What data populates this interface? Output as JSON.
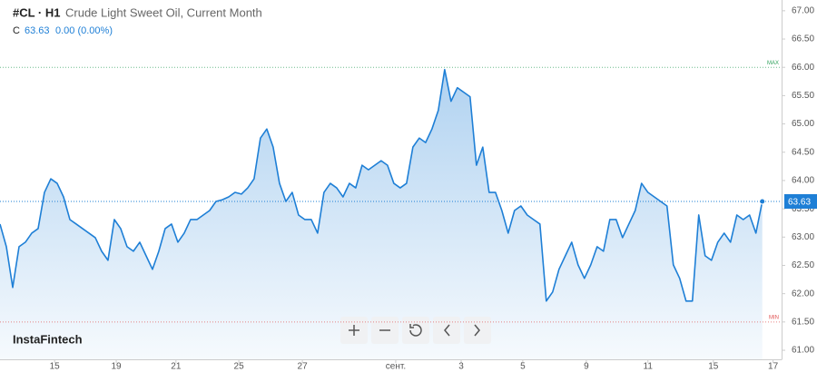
{
  "chart_data": {
    "type": "area",
    "symbol": "#CL · H1",
    "title": "Crude Light Sweet Oil, Current Month",
    "price_label": "C",
    "last_value": 63.63,
    "change_label": "0.00 (0.00%)",
    "brand": "InstaFintech",
    "max_line": {
      "label": "MAX",
      "value": 66
    },
    "min_line": {
      "label": "MIN",
      "value": 61.5
    },
    "x": [
      0,
      1,
      2,
      3,
      4,
      5,
      6,
      7,
      8,
      9,
      10,
      11,
      12,
      13,
      14,
      15,
      16,
      17,
      18,
      19,
      20,
      21,
      22,
      23,
      24,
      25,
      26,
      27,
      28,
      29,
      30,
      31,
      32,
      33,
      34,
      35,
      36,
      37,
      38,
      39,
      40,
      41,
      42,
      43,
      44,
      45,
      46,
      47,
      48,
      49,
      50,
      51,
      52,
      53,
      54,
      55,
      56,
      57,
      58,
      59,
      60,
      61,
      62,
      63,
      64,
      65,
      66,
      67,
      68,
      69,
      70,
      71,
      72,
      73,
      74,
      75,
      76,
      77,
      78,
      79,
      80,
      81,
      82,
      83,
      84,
      85,
      86,
      87,
      88,
      89,
      90,
      91,
      92,
      93,
      94,
      95,
      96,
      97,
      98,
      99,
      100,
      101,
      102,
      103,
      104,
      105,
      106,
      107,
      108,
      109,
      110,
      111,
      112,
      113,
      114,
      115,
      116,
      117,
      118,
      119,
      120
    ],
    "series": [
      {
        "color": "#1e7fd6",
        "values": [
          63.23,
          62.83,
          62.11,
          62.83,
          62.91,
          63.07,
          63.15,
          63.79,
          64.03,
          63.95,
          63.71,
          63.31,
          63.23,
          63.15,
          63.07,
          62.99,
          62.75,
          62.59,
          63.31,
          63.15,
          62.83,
          62.75,
          62.91,
          62.67,
          62.43,
          62.75,
          63.15,
          63.23,
          62.91,
          63.07,
          63.31,
          63.31,
          63.39,
          63.47,
          63.63,
          63.66,
          63.71,
          63.79,
          63.76,
          63.87,
          64.03,
          64.75,
          64.91,
          64.59,
          63.95,
          63.63,
          63.79,
          63.39,
          63.31,
          63.31,
          63.07,
          63.79,
          63.95,
          63.87,
          63.71,
          63.95,
          63.87,
          64.27,
          64.19,
          64.27,
          64.35,
          64.27,
          63.95,
          63.87,
          63.95,
          64.59,
          64.75,
          64.67,
          64.91,
          65.24,
          65.96,
          65.4,
          65.64,
          65.56,
          65.48,
          64.27,
          64.59,
          63.79,
          63.79,
          63.47,
          63.07,
          63.47,
          63.55,
          63.39,
          63.31,
          63.23,
          61.87,
          62.03,
          62.43,
          62.67,
          62.91,
          62.51,
          62.27,
          62.51,
          62.83,
          62.75,
          63.31,
          63.31,
          62.99,
          63.23,
          63.47,
          63.95,
          63.79,
          63.71,
          63.63,
          63.55,
          62.51,
          62.27,
          61.87,
          61.87,
          63.39,
          62.67,
          62.59,
          62.91,
          63.07,
          62.91,
          63.39,
          63.31,
          63.39,
          63.07,
          63.63
        ]
      }
    ],
    "xlim": [
      0,
      122.9
    ],
    "xticks": [
      {
        "value": 8.6,
        "label": "15"
      },
      {
        "value": 18.3,
        "label": "19"
      },
      {
        "value": 27.7,
        "label": "21"
      },
      {
        "value": 37.6,
        "label": "25"
      },
      {
        "value": 47.6,
        "label": "27"
      },
      {
        "value": 62.3,
        "label": "сент."
      },
      {
        "value": 72.6,
        "label": "3"
      },
      {
        "value": 82.3,
        "label": "5"
      },
      {
        "value": 92.3,
        "label": "9"
      },
      {
        "value": 102,
        "label": "11"
      },
      {
        "value": 112.3,
        "label": "15"
      },
      {
        "value": 121.7,
        "label": "17"
      }
    ],
    "ylim": [
      60.84,
      67.19
    ],
    "yticks": [
      {
        "value": 61,
        "label": "61.00"
      },
      {
        "value": 61.5,
        "label": "61.50"
      },
      {
        "value": 62,
        "label": "62.00"
      },
      {
        "value": 62.5,
        "label": "62.50"
      },
      {
        "value": 63,
        "label": "63.00"
      },
      {
        "value": 63.5,
        "label": "63.50"
      },
      {
        "value": 64,
        "label": "64.00"
      },
      {
        "value": 64.5,
        "label": "64.50"
      },
      {
        "value": 65,
        "label": "65.00"
      },
      {
        "value": 65.5,
        "label": "65.50"
      },
      {
        "value": 66,
        "label": "66.00"
      },
      {
        "value": 66.5,
        "label": "66.50"
      },
      {
        "value": 67,
        "label": "67.00"
      }
    ],
    "grid": false
  }
}
